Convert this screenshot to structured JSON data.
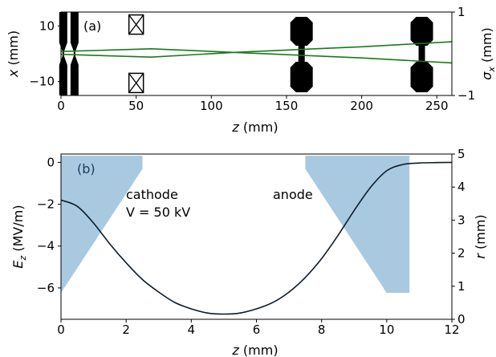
{
  "chart_data": [
    {
      "panel": "(a)",
      "type": "line",
      "xlabel": "z (mm)",
      "ylabel": "x (mm)",
      "y2label": "σx (mm)",
      "xlim": [
        0,
        260
      ],
      "ylim": [
        -15,
        15
      ],
      "y2lim": [
        -1,
        1
      ],
      "xticks": [
        0,
        50,
        100,
        150,
        200,
        250
      ],
      "yticks": [
        10,
        -10
      ],
      "y2ticks": [
        1,
        -1
      ],
      "elements": [
        {
          "name": "cathode plate",
          "z": 1.5
        },
        {
          "name": "anode plate",
          "z": 9
        },
        {
          "name": "quadrupole upper",
          "z": 50,
          "x": 10.5
        },
        {
          "name": "quadrupole lower",
          "z": 50,
          "x": -10.5
        },
        {
          "name": "lens 1",
          "z": 160
        },
        {
          "name": "lens 2",
          "z": 240
        }
      ],
      "series": [
        {
          "x": [
            0,
            60,
            115,
            200,
            260
          ],
          "values": [
            0.8,
            1.8,
            0.5,
            -1.5,
            -3.3
          ]
        },
        {
          "x": [
            0,
            60,
            115,
            200,
            260
          ],
          "values": [
            -0.2,
            -1.2,
            0.5,
            2.5,
            4.3
          ]
        }
      ],
      "line_color": "#1a7a1a"
    },
    {
      "panel": "(b)",
      "type": "line",
      "xlabel": "z (mm)",
      "ylabel": "Ez (MV/m)",
      "y2label": "r (mm)",
      "xlim": [
        0,
        12
      ],
      "ylim": [
        -7.5,
        0.4
      ],
      "y2lim": [
        0,
        5
      ],
      "xticks": [
        0,
        2,
        4,
        6,
        8,
        10,
        12
      ],
      "yticks": [
        0,
        -2,
        -4,
        -6
      ],
      "y2ticks": [
        0,
        1,
        2,
        3,
        4,
        5
      ],
      "annotations": [
        "cathode",
        "V = 50 kV",
        "anode"
      ],
      "field_curve": {
        "z": [
          0,
          0.5,
          1,
          1.5,
          2,
          2.5,
          3,
          3.5,
          4,
          4.5,
          5,
          5.5,
          6,
          6.5,
          7,
          7.5,
          8,
          8.5,
          9,
          9.5,
          10,
          10.5,
          11,
          11.5,
          12
        ],
        "Ez": [
          -1.8,
          -2.1,
          -2.9,
          -3.9,
          -4.8,
          -5.6,
          -6.2,
          -6.7,
          -7.0,
          -7.2,
          -7.25,
          -7.2,
          -7.0,
          -6.7,
          -6.2,
          -5.5,
          -4.6,
          -3.5,
          -2.3,
          -1.2,
          -0.4,
          -0.1,
          -0.03,
          -0.01,
          0.0
        ]
      },
      "electrode_shapes": [
        {
          "name": "cathode",
          "z": [
            0,
            2.5,
            2.5,
            0
          ],
          "r": [
            4.95,
            4.95,
            4.55,
            0.8
          ]
        },
        {
          "name": "anode",
          "z": [
            7.5,
            10.7,
            10.7,
            10.0,
            7.5
          ],
          "r": [
            4.95,
            4.95,
            0.8,
            0.8,
            4.55
          ]
        }
      ],
      "line_color": "#0d1b2a",
      "shape_color": "#a9c9e0"
    }
  ],
  "panels": {
    "a": {
      "panel_label": "(a)",
      "xlabel_main": "z",
      "xlabel_unit": " (mm)",
      "ylabel_main": "x",
      "ylabel_unit": " (mm)",
      "y2label_main": "σ",
      "y2label_sub": "x",
      "y2label_unit": " (mm)"
    },
    "b": {
      "panel_label": "(b)",
      "xlabel_main": "z",
      "xlabel_unit": " (mm)",
      "ylabel_main": "E",
      "ylabel_sub": "z",
      "ylabel_unit": " (MV/m)",
      "y2label_main": "r",
      "y2label_unit": " (mm)",
      "cathode_label": "cathode",
      "voltage_label": "V = 50 kV",
      "anode_label": "anode"
    }
  }
}
